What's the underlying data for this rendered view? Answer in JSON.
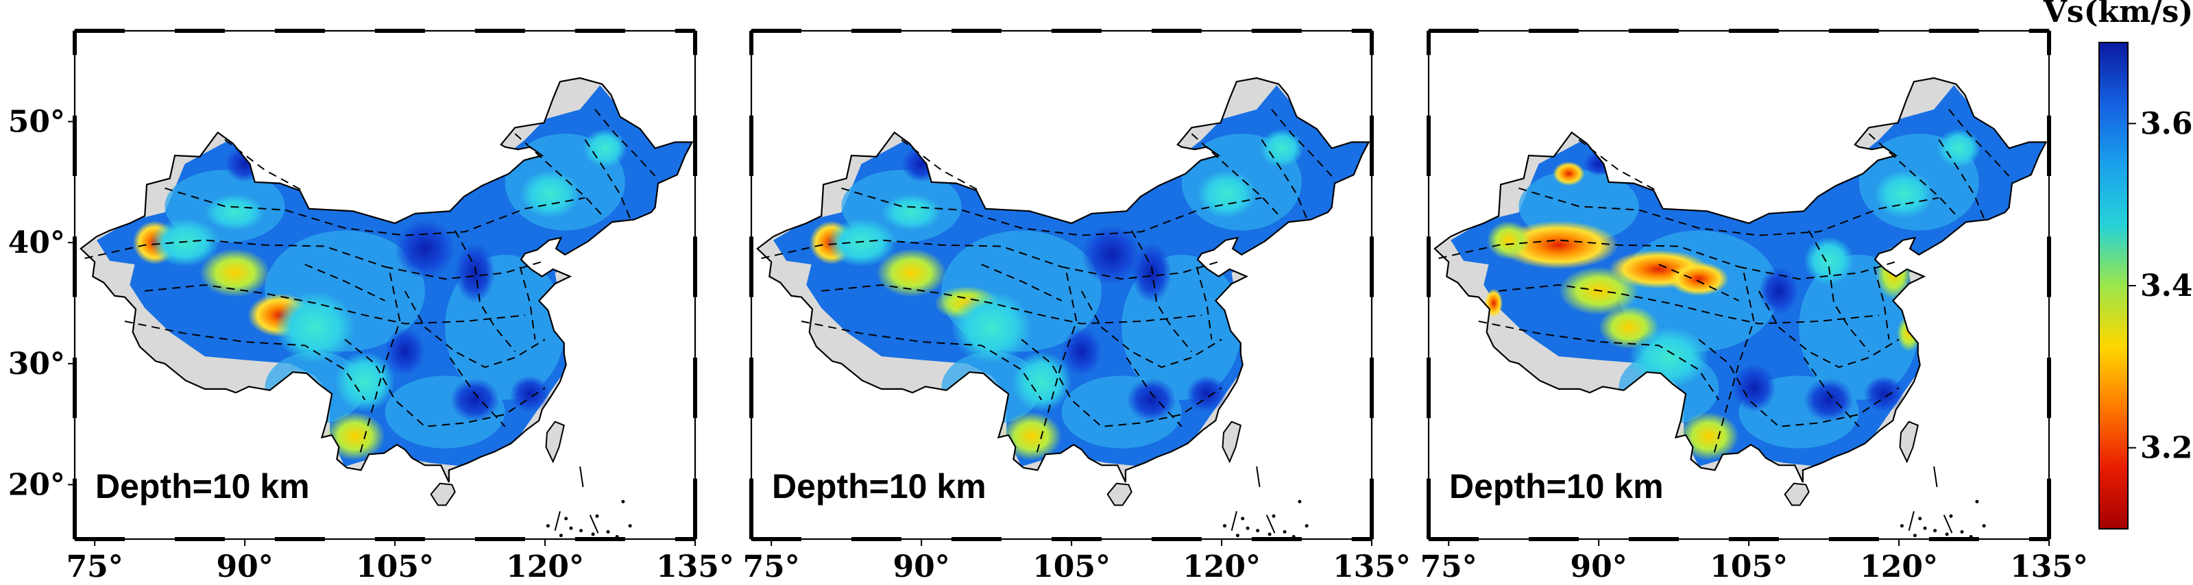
{
  "colorbar": {
    "title": "Vs(km/s)",
    "ticks": [
      "3.6",
      "3.4",
      "3.2"
    ],
    "tick_values": [
      3.6,
      3.4,
      3.2
    ],
    "range": [
      3.1,
      3.7
    ],
    "colors": [
      "#a40000",
      "#e81c00",
      "#ff7a00",
      "#ffd700",
      "#9be64a",
      "#25d2d8",
      "#1aa0ec",
      "#1460e0",
      "#0a1aa0"
    ]
  },
  "axes": {
    "x_ticks": [
      "75°",
      "90°",
      "105°",
      "120°",
      "135°"
    ],
    "x_values": [
      75,
      90,
      105,
      120,
      135
    ],
    "y_ticks": [
      "50°",
      "40°",
      "30°",
      "20°"
    ],
    "y_values": [
      50,
      40,
      30,
      20
    ],
    "lon_range": [
      73,
      135
    ],
    "lat_range": [
      15.5,
      57.5
    ]
  },
  "panels": [
    {
      "label": "Depth=10 km"
    },
    {
      "label": "Depth=10 km"
    },
    {
      "label": "Depth=10 km"
    }
  ],
  "colors": {
    "land_no_data": "#d9d9d9",
    "background": "#ffffff",
    "frame": "#000000"
  }
}
